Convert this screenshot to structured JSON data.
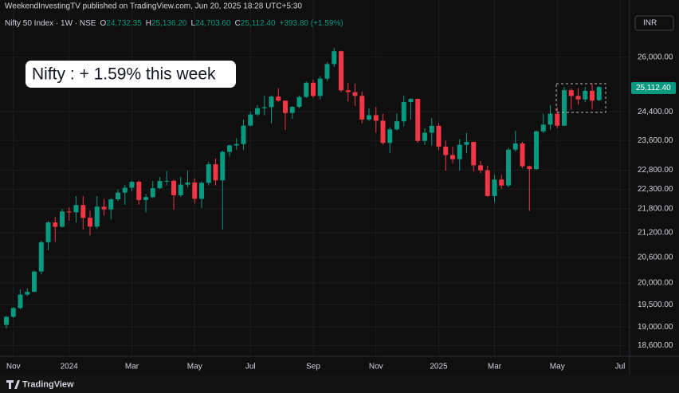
{
  "chart_data": {
    "type": "candlestick",
    "publisher": "WeekendInvestingTV published on TradingView.com, Jun 20, 2025 18:28 UTC+5:30",
    "symbol": "Nifty 50 Index · 1W · NSE",
    "ohlc_header": [
      {
        "key": "O",
        "value": "24,732.35"
      },
      {
        "key": "H",
        "value": "25,136.20"
      },
      {
        "key": "L",
        "value": "24,703.60"
      },
      {
        "key": "C",
        "value": "25,112.40"
      }
    ],
    "change": "+393.80 (+1.59%)",
    "annotation": "Nifty : + 1.59% this week",
    "currency": "INR",
    "last_price_label": "25,112.40",
    "brand": "TradingView",
    "up_color": "#089981",
    "down_color": "#f23645",
    "log_scale": true,
    "grid": true,
    "categories": [
      null,
      "Nov",
      null,
      null,
      null,
      null,
      null,
      null,
      null,
      "2024",
      null,
      null,
      null,
      null,
      null,
      null,
      null,
      null,
      "Mar",
      null,
      null,
      null,
      null,
      null,
      null,
      null,
      null,
      "May",
      null,
      null,
      null,
      null,
      null,
      null,
      null,
      "Jul",
      null,
      null,
      null,
      null,
      null,
      null,
      null,
      null,
      "Sep",
      null,
      null,
      null,
      null,
      null,
      null,
      null,
      null,
      "Nov",
      null,
      null,
      null,
      null,
      null,
      null,
      null,
      null,
      "2025",
      null,
      null,
      null,
      null,
      null,
      null,
      null,
      "Mar",
      null,
      null,
      null,
      null,
      null,
      null,
      null,
      null,
      "May",
      null,
      null,
      null,
      null,
      null,
      null,
      null,
      null,
      "Jul"
    ],
    "open": [
      19050,
      19230,
      19425,
      19732,
      19795,
      20268,
      20969,
      21457,
      21349,
      21731,
      21711,
      21895,
      21572,
      21353,
      21854,
      21783,
      22041,
      22213,
      22339,
      22494,
      22023,
      22097,
      22327,
      22514,
      22519,
      22147,
      22420,
      22476,
      22055,
      22467,
      22957,
      22531,
      23290,
      23466,
      23501,
      24010,
      24324,
      24502,
      24531,
      24835,
      24718,
      24367,
      24541,
      24823,
      25236,
      24852,
      25357,
      25791,
      26179,
      25015,
      24964,
      24854,
      24181,
      24304,
      24148,
      23533,
      23907,
      24131,
      24677,
      24768,
      23588,
      23813,
      24005,
      23432,
      23203,
      23092,
      23482,
      23560,
      22929,
      22796,
      22125,
      22552,
      22397,
      23350,
      23519,
      22904,
      22829,
      23852,
      24039,
      24347,
      24008,
      25020,
      24853,
      24751,
      25003,
      24732.35,
      null,
      null,
      null
    ],
    "high": [
      19250,
      19450,
      19850,
      19875,
      20290,
      21006,
      21493,
      21593,
      21801,
      21834,
      22124,
      22125,
      21750,
      22126,
      22053,
      22068,
      22297,
      22412,
      22527,
      22526,
      22180,
      22516,
      22619,
      22776,
      22550,
      22625,
      22794,
      22580,
      22502,
      23026,
      23110,
      23320,
      23490,
      23667,
      24174,
      24401,
      24592,
      24854,
      24861,
      25078,
      24718,
      24563,
      24867,
      25268,
      25333,
      25433,
      25850,
      26277,
      26200,
      25234,
      25212,
      24979,
      24498,
      24538,
      24337,
      23956,
      24354,
      24857,
      24792,
      24781,
      23938,
      24226,
      24089,
      23596,
      23426,
      23633,
      23807,
      23568,
      23049,
      22921,
      22677,
      22676,
      23402,
      23869,
      23565,
      22923,
      23872,
      24347,
      24589,
      24526,
      25116,
      25070,
      25079,
      25116,
      25222,
      25136.2,
      null,
      null,
      null
    ],
    "low": [
      18970,
      19200,
      19400,
      19700,
      19790,
      20200,
      20770,
      20977,
      21330,
      21500,
      21450,
      21285,
      21137,
      21300,
      21629,
      21530,
      22000,
      21900,
      22250,
      21905,
      21710,
      22070,
      22300,
      22400,
      21777,
      22100,
      22350,
      21932,
      21821,
      22400,
      22400,
      21281,
      23160,
      23350,
      23350,
      23992,
      24280,
      24300,
      24074,
      24686,
      23894,
      24200,
      24500,
      24790,
      24800,
      24753,
      25285,
      25700,
      24966,
      24694,
      24567,
      24074,
      24140,
      23816,
      23484,
      23263,
      23873,
      23990,
      24180,
      23537,
      23478,
      23460,
      23327,
      22786,
      22976,
      22786,
      23263,
      22774,
      22720,
      22105,
      21964,
      22314,
      22353,
      23300,
      22857,
      21743,
      22800,
      23800,
      23900,
      23935,
      24000,
      24462,
      24600,
      24671,
      24473,
      24703.6,
      null,
      null,
      null
    ],
    "close": [
      19230,
      19425,
      19732,
      19795,
      20268,
      20969,
      21457,
      21349,
      21731,
      21711,
      21895,
      21572,
      21353,
      21854,
      21783,
      22041,
      22213,
      22339,
      22494,
      22023,
      22097,
      22327,
      22514,
      22519,
      22147,
      22420,
      22476,
      22055,
      22467,
      22957,
      22531,
      23290,
      23466,
      23501,
      24010,
      24324,
      24502,
      24531,
      24835,
      24718,
      24367,
      24541,
      24823,
      25236,
      24852,
      25357,
      25791,
      26179,
      25015,
      24964,
      24854,
      24181,
      24304,
      24148,
      23533,
      23907,
      24131,
      24677,
      24768,
      23588,
      23813,
      24005,
      23432,
      23203,
      23092,
      23482,
      23560,
      22929,
      22796,
      22125,
      22552,
      22397,
      23350,
      23519,
      22904,
      22829,
      23852,
      24039,
      24347,
      24008,
      25020,
      24853,
      24751,
      25003,
      24719,
      25112.4,
      null,
      null,
      null
    ],
    "ylim": [
      18400,
      27400
    ],
    "yticks": [
      {
        "value": 18600,
        "label": "18,600.00"
      },
      {
        "value": 19000,
        "label": "19,000.00"
      },
      {
        "value": 19500,
        "label": "19,500.00"
      },
      {
        "value": 20000,
        "label": "20,000.00"
      },
      {
        "value": 20600,
        "label": "20,600.00"
      },
      {
        "value": 21200,
        "label": "21,200.00"
      },
      {
        "value": 21800,
        "label": "21,800.00"
      },
      {
        "value": 22300,
        "label": "22,300.00"
      },
      {
        "value": 22800,
        "label": "22,800.00"
      },
      {
        "value": 23600,
        "label": "23,600.00"
      },
      {
        "value": 24400,
        "label": "24,400.00"
      },
      {
        "value": 26000,
        "label": "26,000.00"
      }
    ]
  }
}
